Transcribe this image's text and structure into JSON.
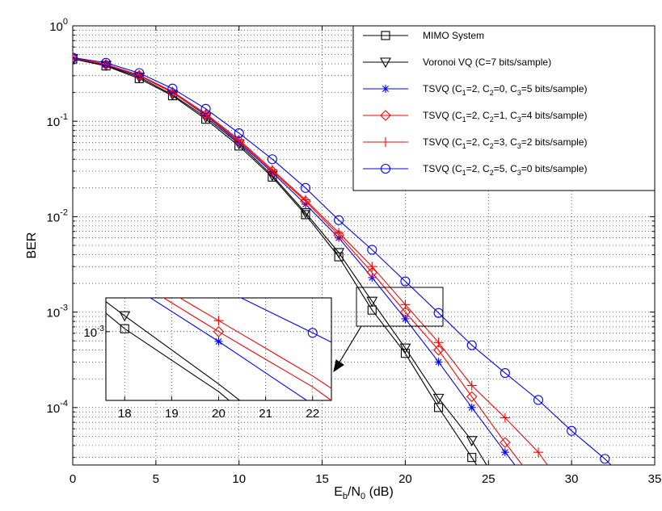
{
  "chart_data": {
    "type": "line",
    "title": "",
    "xlabel": {
      "base": "E",
      "sub1": "b",
      "mid": "/N",
      "sub2": "0",
      "rest": " (dB)"
    },
    "ylabel": "BER",
    "xlim": [
      0,
      35
    ],
    "ylim": [
      2.5e-05,
      1
    ],
    "yscale": "log",
    "grid": true,
    "legend_position": "top-right",
    "x_ticks": [
      "0",
      "5",
      "10",
      "15",
      "20",
      "25",
      "30",
      "35"
    ],
    "y_ticks": [
      {
        "base": "10",
        "exp": "0"
      },
      {
        "base": "10",
        "exp": "-1"
      },
      {
        "base": "10",
        "exp": "-2"
      },
      {
        "base": "10",
        "exp": "-3"
      },
      {
        "base": "10",
        "exp": "-4"
      }
    ],
    "series": [
      {
        "name": "MIMO System",
        "label_parts": [
          {
            "t": "MIMO System"
          }
        ],
        "color": "#000000",
        "marker": "square",
        "x": [
          0,
          2,
          4,
          6,
          8,
          10,
          12,
          14,
          16,
          18,
          20,
          22,
          24,
          26
        ],
        "y": [
          0.45,
          0.38,
          0.28,
          0.185,
          0.105,
          0.055,
          0.026,
          0.0105,
          0.0038,
          0.00105,
          0.00037,
          0.0001,
          3e-05,
          8.5e-06
        ],
        "marker_x": [
          0,
          2,
          4,
          6,
          8,
          10,
          12,
          14,
          16,
          18,
          20,
          22,
          24
        ]
      },
      {
        "name": "Voronoi VQ (C=7 bits/sample)",
        "label_parts": [
          {
            "t": "Voronoi VQ (C=7 bits/sample)"
          }
        ],
        "color": "#000000",
        "marker": "triangle-down",
        "x": [
          0,
          2,
          4,
          6,
          8,
          10,
          12,
          14,
          16,
          18,
          20,
          22,
          24,
          26
        ],
        "y": [
          0.455,
          0.385,
          0.29,
          0.19,
          0.11,
          0.058,
          0.027,
          0.011,
          0.0042,
          0.0013,
          0.00042,
          0.000125,
          4.5e-05,
          1.2e-05
        ],
        "marker_x": [
          0,
          2,
          4,
          6,
          8,
          10,
          12,
          14,
          16,
          18,
          20,
          22,
          24
        ]
      },
      {
        "name": "TSVQ (C1=2, C2=0, C3=5 bits/sample)",
        "label_parts": [
          {
            "t": "TSVQ  (C"
          },
          {
            "t": "1",
            "sub": true
          },
          {
            "t": "=2, C"
          },
          {
            "t": "2",
            "sub": true
          },
          {
            "t": "=0, C"
          },
          {
            "t": "3",
            "sub": true
          },
          {
            "t": "=5 bits/sample)"
          }
        ],
        "color": "#0000ff",
        "marker": "star",
        "x": [
          0,
          2,
          4,
          6,
          8,
          10,
          12,
          14,
          16,
          18,
          20,
          22,
          24,
          26,
          28
        ],
        "y": [
          0.46,
          0.39,
          0.3,
          0.2,
          0.115,
          0.06,
          0.029,
          0.0135,
          0.006,
          0.0023,
          0.00085,
          0.0003,
          0.0001,
          3.4e-05,
          1.2e-05
        ],
        "marker_x": [
          0,
          2,
          4,
          6,
          8,
          10,
          12,
          14,
          16,
          18,
          20,
          22,
          24,
          26
        ]
      },
      {
        "name": "TSVQ (C1=2, C2=1, C3=4 bits/sample)",
        "label_parts": [
          {
            "t": "TSVQ  (C"
          },
          {
            "t": "1",
            "sub": true
          },
          {
            "t": "=2, C"
          },
          {
            "t": "2",
            "sub": true
          },
          {
            "t": "=1, C"
          },
          {
            "t": "3",
            "sub": true
          },
          {
            "t": "=4 bits/sample)"
          }
        ],
        "color": "#ff0000",
        "marker": "diamond",
        "x": [
          0,
          2,
          4,
          6,
          8,
          10,
          12,
          14,
          16,
          18,
          20,
          22,
          24,
          26,
          28
        ],
        "y": [
          0.46,
          0.392,
          0.302,
          0.2,
          0.117,
          0.062,
          0.03,
          0.0145,
          0.0064,
          0.0026,
          0.001,
          0.0004,
          0.00013,
          4.3e-05,
          1.5e-05
        ],
        "marker_x": [
          0,
          2,
          4,
          6,
          8,
          10,
          12,
          14,
          16,
          18,
          20,
          22,
          24,
          26
        ]
      },
      {
        "name": "TSVQ (C1=2, C2=3, C3=2 bits/sample)",
        "label_parts": [
          {
            "t": "TSVQ  (C"
          },
          {
            "t": "1",
            "sub": true
          },
          {
            "t": "=2, C"
          },
          {
            "t": "2",
            "sub": true
          },
          {
            "t": "=3, C"
          },
          {
            "t": "3",
            "sub": true
          },
          {
            "t": "=2 bits/sample)"
          }
        ],
        "color": "#ff0000",
        "marker": "plus",
        "x": [
          0,
          2,
          4,
          6,
          8,
          10,
          12,
          14,
          16,
          18,
          20,
          22,
          24,
          26,
          28,
          30
        ],
        "y": [
          0.462,
          0.395,
          0.305,
          0.205,
          0.12,
          0.064,
          0.031,
          0.015,
          0.0068,
          0.003,
          0.0012,
          0.00048,
          0.00017,
          7.8e-05,
          3.4e-05,
          1.1e-05
        ],
        "marker_x": [
          0,
          2,
          4,
          6,
          8,
          10,
          12,
          14,
          16,
          18,
          20,
          22,
          24,
          26,
          28
        ]
      },
      {
        "name": "TSVQ (C1=2, C2=5, C3=0 bits/sample)",
        "label_parts": [
          {
            "t": "TSVQ  (C"
          },
          {
            "t": "1",
            "sub": true
          },
          {
            "t": "=2, C"
          },
          {
            "t": "2",
            "sub": true
          },
          {
            "t": "=5, C"
          },
          {
            "t": "3",
            "sub": true
          },
          {
            "t": "=0 bits/sample)"
          }
        ],
        "color": "#0000ff",
        "marker": "circle",
        "x": [
          0,
          2,
          4,
          6,
          8,
          10,
          12,
          14,
          16,
          18,
          20,
          22,
          24,
          26,
          28,
          30,
          32,
          34
        ],
        "y": [
          0.465,
          0.41,
          0.32,
          0.22,
          0.135,
          0.075,
          0.04,
          0.02,
          0.0092,
          0.0045,
          0.0021,
          0.00098,
          0.00045,
          0.00023,
          0.00012,
          5.7e-05,
          2.9e-05,
          1.3e-05
        ],
        "marker_x": [
          0,
          2,
          4,
          6,
          8,
          10,
          12,
          14,
          16,
          18,
          20,
          22,
          24,
          26,
          28,
          30,
          32
        ]
      }
    ],
    "inset": {
      "x_ticks": [
        "18",
        "19",
        "20",
        "21",
        "22"
      ],
      "y_tick": {
        "base": "10",
        "exp": "-3"
      },
      "xlim": [
        17.6,
        22.4
      ],
      "region": {
        "x": [
          17.2,
          21.2
        ],
        "y": [
          0.0006,
          0.0014
        ]
      }
    }
  }
}
